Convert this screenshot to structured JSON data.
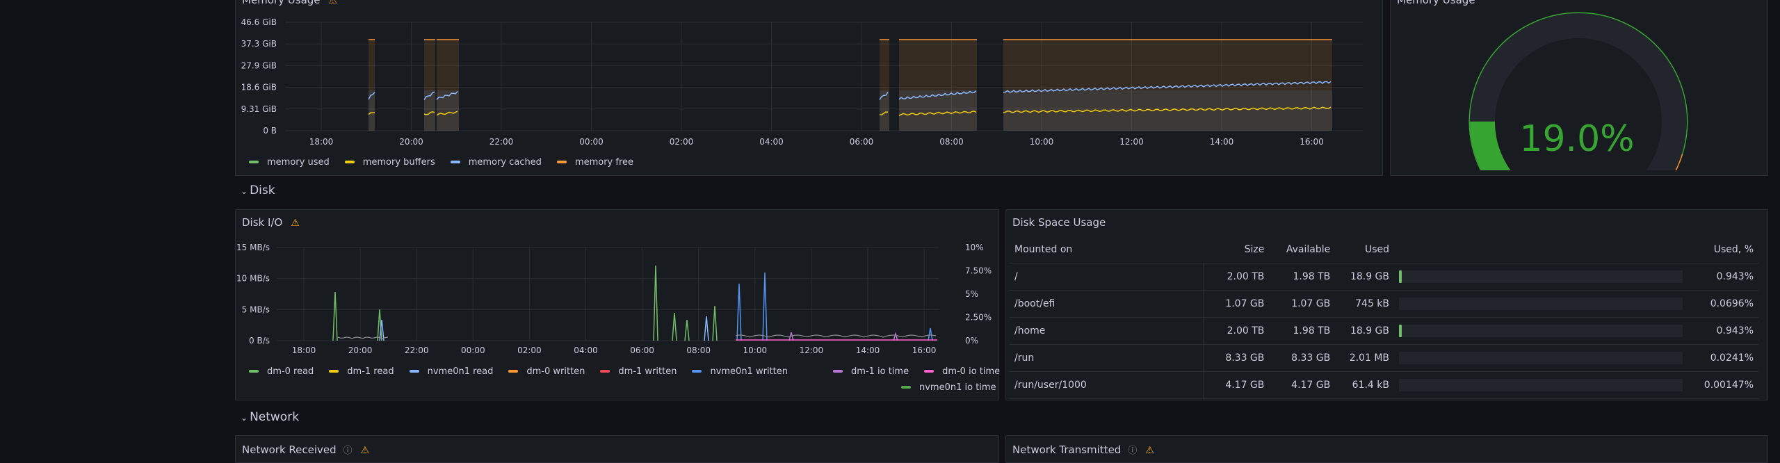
{
  "memory_panel": {
    "title": "Memory Usage",
    "y_ticks": [
      "46.6 GiB",
      "37.3 GiB",
      "27.9 GiB",
      "18.6 GiB",
      "9.31 GiB",
      "0 B"
    ],
    "x_ticks": [
      "18:00",
      "20:00",
      "22:00",
      "00:00",
      "02:00",
      "04:00",
      "06:00",
      "08:00",
      "10:00",
      "12:00",
      "14:00",
      "16:00"
    ],
    "legend": [
      {
        "label": "memory used",
        "color": "#73bf69"
      },
      {
        "label": "memory buffers",
        "color": "#f2cc0c"
      },
      {
        "label": "memory cached",
        "color": "#8ab8ff"
      },
      {
        "label": "memory free",
        "color": "#ff9830"
      }
    ]
  },
  "gauge": {
    "title": "Memory Usage",
    "value": "19.0%",
    "percent": 19.0,
    "color": "#37a531"
  },
  "sections": {
    "disk": "Disk",
    "network": "Network"
  },
  "disk_io": {
    "title": "Disk I/O",
    "y_left": [
      "15 MB/s",
      "10 MB/s",
      "5 MB/s",
      "0 B/s"
    ],
    "y_right": [
      "10%",
      "7.50%",
      "5%",
      "2.50%",
      "0%"
    ],
    "x_ticks": [
      "18:00",
      "20:00",
      "22:00",
      "00:00",
      "02:00",
      "04:00",
      "06:00",
      "08:00",
      "10:00",
      "12:00",
      "14:00",
      "16:00"
    ],
    "legend_row1": [
      {
        "label": "dm-0 read",
        "color": "#73bf69"
      },
      {
        "label": "dm-1 read",
        "color": "#f2cc0c"
      },
      {
        "label": "nvme0n1 read",
        "color": "#8ab8ff"
      },
      {
        "label": "dm-0 written",
        "color": "#ff9830"
      },
      {
        "label": "dm-1 written",
        "color": "#f2495c"
      },
      {
        "label": "nvme0n1 written",
        "color": "#5794f2"
      }
    ],
    "legend_right": [
      {
        "label": "dm-1 io time",
        "color": "#b877d9"
      },
      {
        "label": "dm-0 io time",
        "color": "#ff5ccd"
      }
    ],
    "legend_row3": [
      {
        "label": "nvme0n1 io time",
        "color": "#56a64b"
      }
    ]
  },
  "disk_space": {
    "title": "Disk Space Usage",
    "headers": {
      "mount": "Mounted on",
      "size": "Size",
      "avail": "Available",
      "used": "Used",
      "pct": "Used, %"
    },
    "rows": [
      {
        "mount": "/",
        "size": "2.00 TB",
        "avail": "1.98 TB",
        "used": "18.9 GB",
        "pct": "0.943%",
        "bar": 0.943
      },
      {
        "mount": "/boot/efi",
        "size": "1.07 GB",
        "avail": "1.07 GB",
        "used": "745 kB",
        "pct": "0.0696%",
        "bar": 0.0696
      },
      {
        "mount": "/home",
        "size": "2.00 TB",
        "avail": "1.98 TB",
        "used": "18.9 GB",
        "pct": "0.943%",
        "bar": 0.943
      },
      {
        "mount": "/run",
        "size": "8.33 GB",
        "avail": "8.33 GB",
        "used": "2.01 MB",
        "pct": "0.0241%",
        "bar": 0.0241
      },
      {
        "mount": "/run/user/1000",
        "size": "4.17 GB",
        "avail": "4.17 GB",
        "used": "61.4 kB",
        "pct": "0.00147%",
        "bar": 0.00147
      }
    ]
  },
  "network": {
    "received": "Network Received",
    "transmitted": "Network Transmitted"
  }
}
